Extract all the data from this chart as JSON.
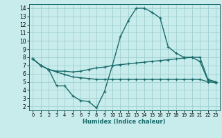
{
  "xlabel": "Humidex (Indice chaleur)",
  "bg_color": "#c8ecec",
  "line_color": "#1a6b6b",
  "grid_color": "#a0d0d0",
  "xlim": [
    -0.5,
    23.5
  ],
  "ylim": [
    1.5,
    14.5
  ],
  "xticks": [
    0,
    1,
    2,
    3,
    4,
    5,
    6,
    7,
    8,
    9,
    10,
    11,
    12,
    13,
    14,
    15,
    16,
    17,
    18,
    19,
    20,
    21,
    22,
    23
  ],
  "yticks": [
    2,
    3,
    4,
    5,
    6,
    7,
    8,
    9,
    10,
    11,
    12,
    13,
    14
  ],
  "line1_x": [
    0,
    1,
    2,
    3,
    4,
    5,
    6,
    7,
    8,
    9,
    10,
    11,
    12,
    13,
    14,
    15,
    16,
    17,
    18,
    19,
    20,
    21,
    22,
    23
  ],
  "line1_y": [
    7.8,
    7.0,
    6.5,
    4.5,
    4.5,
    3.3,
    2.7,
    2.6,
    1.8,
    3.8,
    7.0,
    10.5,
    12.5,
    14.0,
    14.0,
    13.5,
    12.8,
    9.3,
    8.5,
    8.0,
    8.0,
    7.5,
    5.2,
    5.0
  ],
  "line2_x": [
    0,
    1,
    2,
    3,
    4,
    5,
    6,
    7,
    8,
    9,
    10,
    11,
    12,
    13,
    14,
    15,
    16,
    17,
    18,
    19,
    20,
    21,
    22,
    23
  ],
  "line2_y": [
    7.8,
    7.0,
    6.5,
    6.3,
    6.3,
    6.2,
    6.3,
    6.5,
    6.7,
    6.8,
    7.0,
    7.1,
    7.2,
    7.3,
    7.4,
    7.5,
    7.6,
    7.7,
    7.8,
    7.9,
    8.0,
    8.0,
    5.3,
    5.0
  ],
  "line3_x": [
    0,
    1,
    2,
    3,
    4,
    5,
    6,
    7,
    8,
    9,
    10,
    11,
    12,
    13,
    14,
    15,
    16,
    17,
    18,
    19,
    20,
    21,
    22,
    23
  ],
  "line3_y": [
    7.8,
    7.0,
    6.5,
    6.2,
    5.9,
    5.6,
    5.5,
    5.4,
    5.3,
    5.3,
    5.3,
    5.3,
    5.3,
    5.3,
    5.3,
    5.3,
    5.3,
    5.3,
    5.3,
    5.3,
    5.3,
    5.3,
    5.0,
    4.9
  ],
  "xlabel_fontsize": 6.0,
  "tick_fontsize_x": 4.8,
  "tick_fontsize_y": 5.5
}
